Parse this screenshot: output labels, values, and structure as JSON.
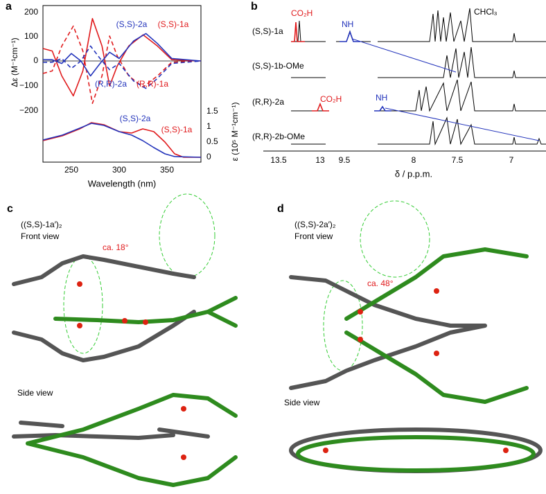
{
  "panels": [
    {
      "label": "a",
      "y_axis_label": "Δε (M⁻¹cm⁻¹)",
      "y_ticks": [
        "200",
        "100",
        "0",
        "−100",
        "−200"
      ],
      "y2_axis_label": "ε (10⁵ M⁻¹cm⁻¹)",
      "y2_ticks": [
        "1.5",
        "1",
        "0.5",
        "0"
      ],
      "x_axis_label": "Wavelength (nm)",
      "x_ticks": [
        "250",
        "300",
        "350"
      ],
      "curve_labels": [
        "(S,S)-2a",
        "(S,S)-1a",
        "(R,R)-2a",
        "(R,R)-1a",
        "(S,S)-2a",
        "(S,S)-1a"
      ]
    },
    {
      "label": "b",
      "rows": [
        "(S,S)-1a",
        "(S,S)-1b-OMe",
        "(R,R)-2a",
        "(R,R)-2b-OMe"
      ],
      "peak_labels": [
        "CO₂H",
        "NH",
        "CHCl₃",
        "CO₂H",
        "NH"
      ],
      "x_ticks": [
        "13.5",
        "13",
        "9.5",
        "8",
        "7.5",
        "7"
      ],
      "x_axis_label": "δ / p.p.m."
    },
    {
      "label": "c",
      "title": "((S,S)-1a′)₂",
      "front": "Front view",
      "angle": "ca. 18°",
      "side": "Side view"
    },
    {
      "label": "d",
      "title": "((S,S)-2a′)₂",
      "front": "Front view",
      "angle": "ca. 48°",
      "side": "Side view"
    }
  ]
}
